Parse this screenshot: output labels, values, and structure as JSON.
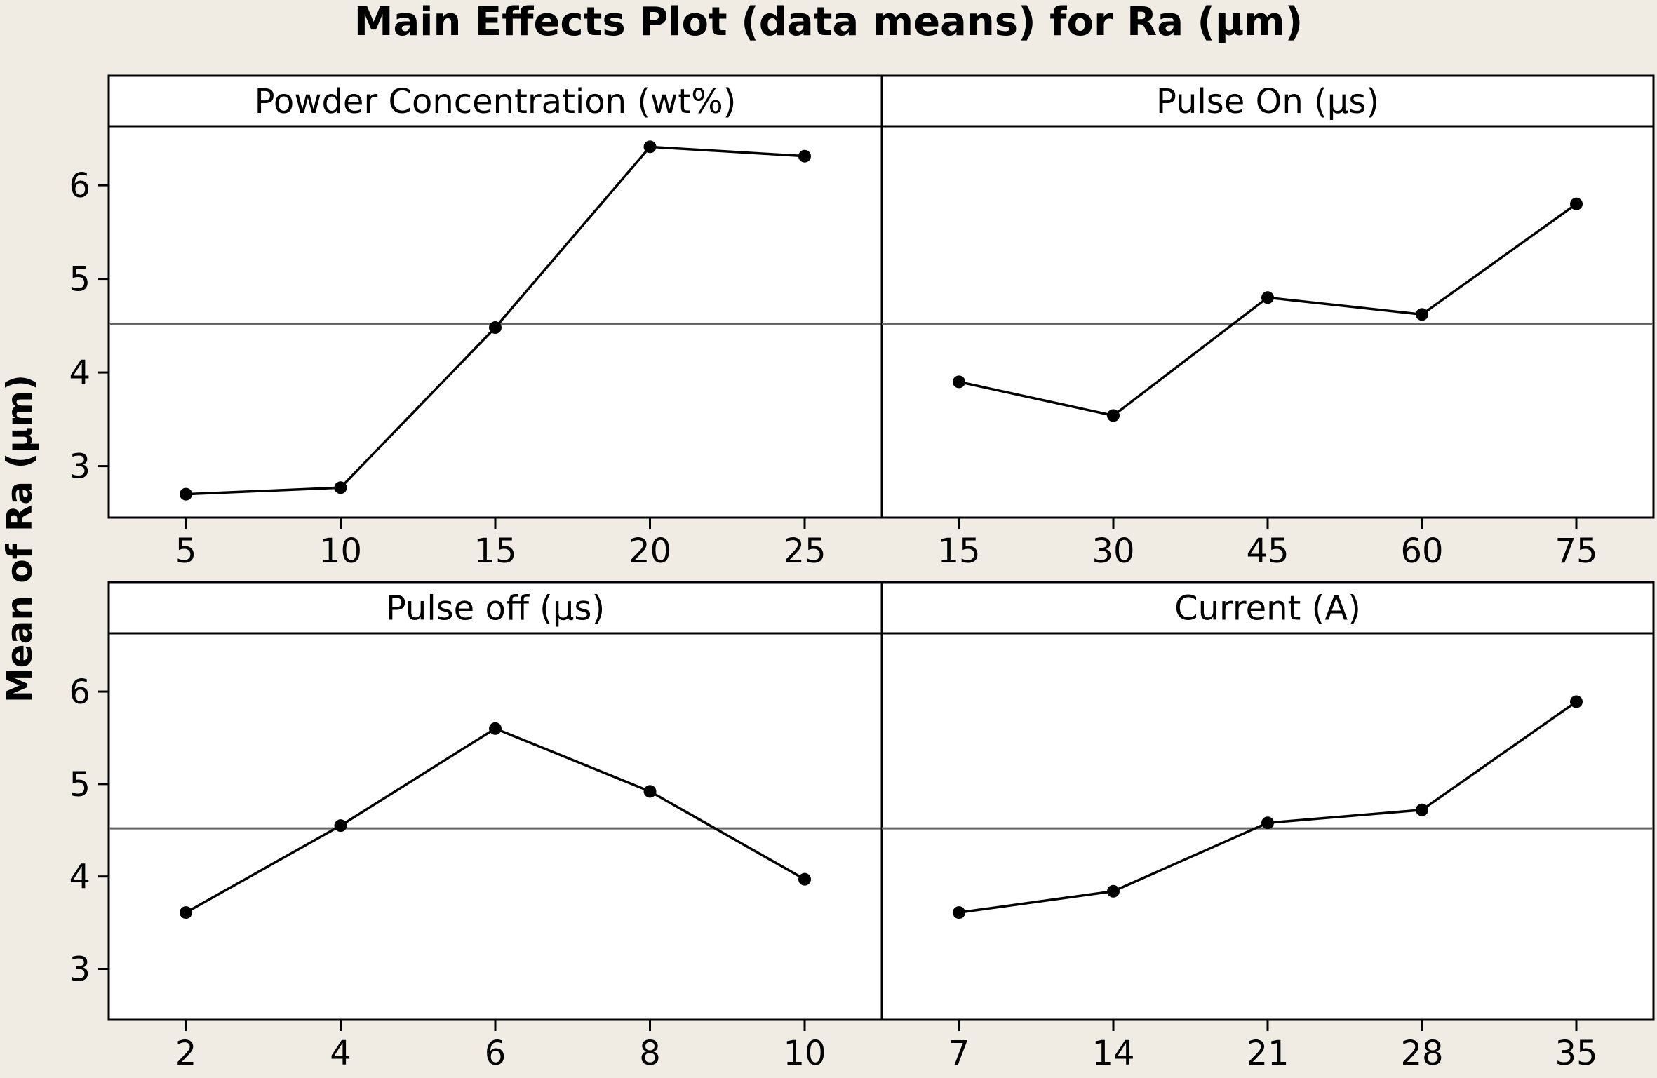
{
  "chart_data": {
    "type": "line",
    "title": "Main Effects Plot (data means) for Ra (µm)",
    "ylabel": "Mean of Ra (µm)",
    "ylim": [
      2.45,
      6.63
    ],
    "yticks": [
      3,
      4,
      5,
      6
    ],
    "overall_mean": 4.52,
    "panels": [
      {
        "name": "Powder Concentration (wt%)",
        "x": [
          "5",
          "10",
          "15",
          "20",
          "25"
        ],
        "y": [
          2.7,
          2.77,
          4.48,
          6.41,
          6.31
        ]
      },
      {
        "name": "Pulse On (µs)",
        "x": [
          "15",
          "30",
          "45",
          "60",
          "75"
        ],
        "y": [
          3.9,
          3.54,
          4.8,
          4.62,
          5.8
        ]
      },
      {
        "name": "Pulse off (µs)",
        "x": [
          "2",
          "4",
          "6",
          "8",
          "10"
        ],
        "y": [
          3.61,
          4.55,
          5.6,
          4.92,
          3.97
        ]
      },
      {
        "name": "Current (A)",
        "x": [
          "7",
          "14",
          "21",
          "28",
          "35"
        ],
        "y": [
          3.61,
          3.84,
          4.58,
          4.72,
          5.89
        ]
      }
    ]
  }
}
